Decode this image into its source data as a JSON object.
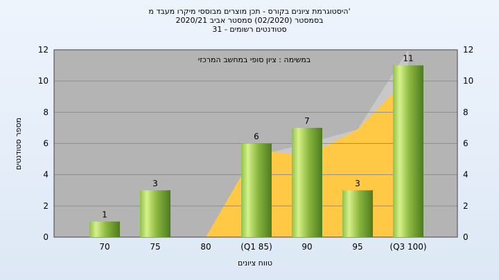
{
  "header": {
    "title_line1": "היסטוגרמת ציונים בקורס - תכן מוצרים מבוססי מיקרו מעבד מ'",
    "title_line2": "בסמסטר  (02/2020)  סמסטר אביב 2020/21",
    "title_line3": "סטודנטים רשומים - 31"
  },
  "chart_data": {
    "type": "bar",
    "annotation": "במשימה : ציון סופי במחשב המרכזי",
    "categories": [
      "70",
      "75",
      "80",
      "(Q1 85)",
      "90",
      "95",
      "(Q3 100)"
    ],
    "values": [
      1,
      3,
      0,
      6,
      7,
      3,
      11
    ],
    "data_labels": [
      "1",
      "3",
      "",
      "6",
      "7",
      "3",
      "11"
    ],
    "xlabel": "טווח ציונים",
    "ylabel": "מספר סטודנטים",
    "ylim": [
      0,
      12
    ],
    "yticks": [
      0,
      2,
      4,
      6,
      8,
      10,
      12
    ],
    "grid": "horizontal",
    "background_area_gray": [
      0,
      0,
      0,
      5.2,
      6,
      6.9,
      12
    ],
    "background_area_yellow": [
      0,
      0,
      0,
      5.6,
      5.2,
      6.9,
      10.2
    ],
    "colors": {
      "plot_bg": "#b4b4b4",
      "bar_light": "#d6f08a",
      "bar_dark": "#4d7a1e",
      "area_yellow": "#ffc845",
      "area_gray": "#c8c8c8"
    }
  }
}
